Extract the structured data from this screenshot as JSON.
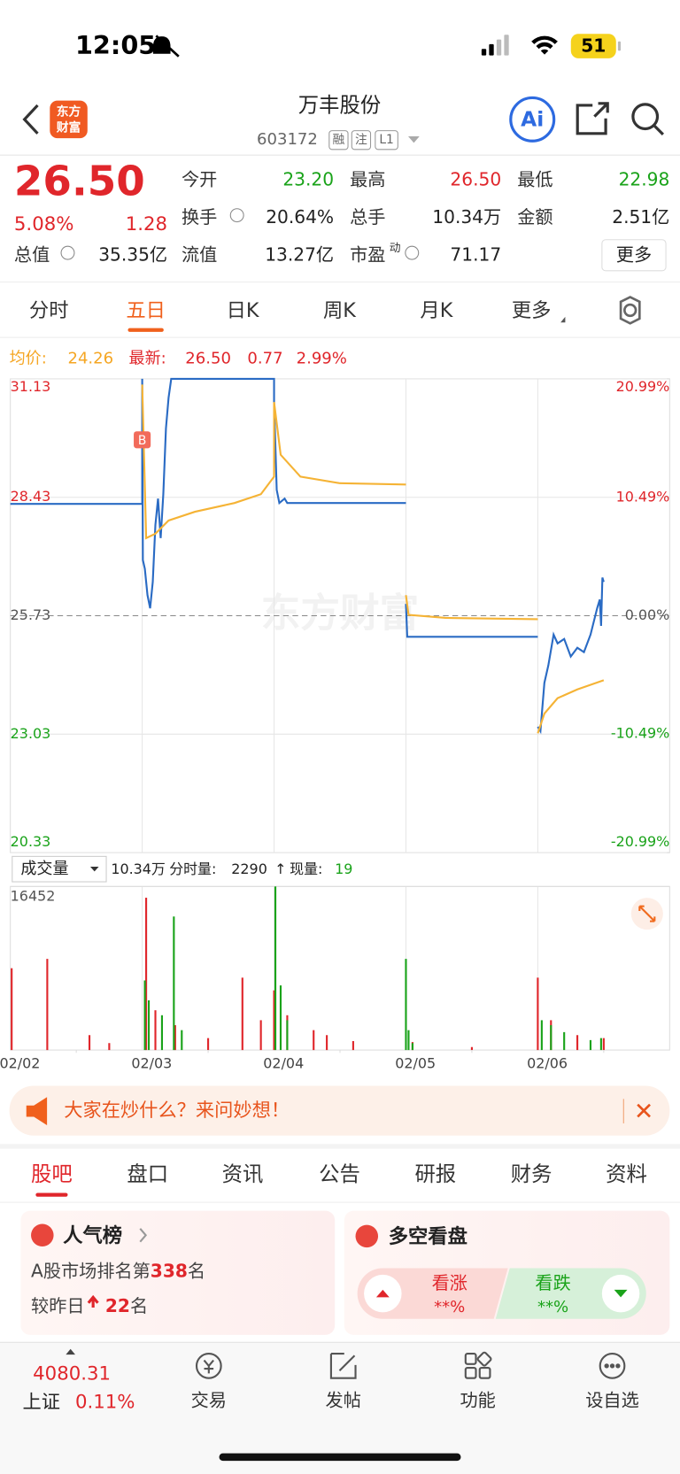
{
  "status": {
    "time": "12:05",
    "battery": "51"
  },
  "header": {
    "logo": [
      "东方",
      "财富"
    ],
    "title": "万丰股份",
    "code": "603172",
    "tags": [
      "融",
      "注",
      "L1"
    ],
    "ai": "Ai"
  },
  "quote": {
    "price": "26.50",
    "change_pct": "5.08%",
    "change": "1.28",
    "fields": [
      {
        "label": "今开",
        "value": "23.20",
        "color": "#1aa31a"
      },
      {
        "label": "最高",
        "value": "26.50",
        "color": "#e0262b"
      },
      {
        "label": "最低",
        "value": "22.98",
        "color": "#1aa31a"
      },
      {
        "label": "换手",
        "value": "20.64%",
        "color": "#222222"
      },
      {
        "label": "总手",
        "value": "10.34万",
        "color": "#222222"
      },
      {
        "label": "金额",
        "value": "2.51亿",
        "color": "#222222"
      },
      {
        "label": "总值",
        "value": "35.35亿",
        "color": "#222222"
      },
      {
        "label": "流值",
        "value": "13.27亿",
        "color": "#222222"
      },
      {
        "label": "市盈",
        "value": "71.17",
        "color": "#222222"
      }
    ],
    "pe_sup": "动",
    "more": "更多"
  },
  "tabs": {
    "items": [
      "分时",
      "五日",
      "日K",
      "周K",
      "月K",
      "更多"
    ],
    "active": 1
  },
  "legend": {
    "avg_label": "均价:",
    "avg": "24.26",
    "last_label": "最新:",
    "last": "26.50",
    "change": "0.77",
    "change_pct": "2.99%"
  },
  "chart_data": [
    {
      "type": "line",
      "xlim": [
        0,
        5
      ],
      "ylim": [
        20.33,
        31.13
      ],
      "yticks": [
        20.33,
        23.03,
        25.73,
        28.43,
        31.13
      ],
      "y2lim": [
        -20.99,
        20.99
      ],
      "y2ticks": [
        {
          "value": -20.99,
          "label": "-20.99%"
        },
        {
          "value": -10.49,
          "label": "-10.49%"
        },
        {
          "value": 0,
          "label": "0.00%"
        },
        {
          "value": 10.49,
          "label": "10.49%"
        },
        {
          "value": 20.99,
          "label": "20.99%"
        }
      ],
      "grid": true,
      "watermark": "东方财富",
      "series": [
        {
          "color": "#2a6bc4",
          "x": [
            0,
            1,
            1,
            1.005,
            1.02,
            1.04,
            1.06,
            1.08,
            1.1,
            1.12,
            1.14,
            1.16,
            1.18,
            1.2,
            1.22,
            2,
            2,
            2.02,
            2.04,
            2.08,
            2.1,
            3,
            null,
            3,
            3.01,
            4,
            null,
            4,
            4.02,
            4.05,
            4.08,
            4.12,
            4.15,
            4.2,
            4.25,
            4.3,
            4.35,
            4.4,
            4.45,
            4.47,
            4.48,
            4.49,
            4.5
          ],
          "values": [
            28.28,
            28.28,
            31.13,
            27.0,
            26.8,
            26.2,
            25.9,
            26.5,
            27.8,
            28.4,
            27.5,
            28.5,
            30.0,
            30.7,
            31.13,
            31.13,
            30.6,
            28.6,
            28.3,
            28.4,
            28.3,
            28.3,
            null,
            26.0,
            25.25,
            25.25,
            null,
            23.2,
            23.1,
            24.2,
            24.6,
            25.3,
            25.1,
            25.2,
            24.8,
            25.0,
            24.9,
            25.3,
            25.9,
            26.1,
            25.5,
            26.6,
            26.5
          ]
        },
        {
          "color": "#f5b335",
          "x": [
            1,
            1.03,
            1.1,
            1.2,
            1.4,
            1.7,
            1.9,
            2,
            2,
            2.05,
            2.2,
            2.5,
            3,
            null,
            3,
            3.02,
            3.3,
            4,
            null,
            4,
            4.05,
            4.15,
            4.3,
            4.5
          ],
          "values": [
            31.0,
            27.5,
            27.6,
            27.9,
            28.1,
            28.3,
            28.5,
            28.9,
            30.6,
            29.4,
            28.9,
            28.75,
            28.72,
            null,
            26.2,
            25.75,
            25.68,
            25.65,
            null,
            23.05,
            23.5,
            23.85,
            24.05,
            24.26
          ]
        }
      ],
      "annotations": [
        {
          "text": "B",
          "x": 1,
          "y": 29.74,
          "color": "#f26b5b"
        }
      ]
    },
    {
      "type": "bar",
      "xlim": [
        0,
        5
      ],
      "ylim": [
        0,
        16452
      ],
      "yticks": [
        16452
      ],
      "xticks": [
        {
          "value": 0.5,
          "label": "02/02"
        },
        {
          "value": 1.5,
          "label": "02/03"
        },
        {
          "value": 2.5,
          "label": "02/04"
        },
        {
          "value": 3.5,
          "label": "02/05"
        },
        {
          "value": 4.5,
          "label": "02/06"
        }
      ],
      "series": [
        {
          "color": "#e0262b",
          "x": [
            0.01,
            0.28,
            0.6,
            0.75,
            1.03,
            1.1,
            1.25,
            1.5,
            1.76,
            1.9,
            2.0,
            2.1,
            2.3,
            2.4,
            2.6,
            3.05,
            3.5,
            4.0,
            4.1,
            4.3,
            4.5
          ],
          "values": [
            8230,
            9170,
            1500,
            700,
            15320,
            4000,
            2500,
            1200,
            7280,
            3000,
            6000,
            3500,
            2000,
            1500,
            900,
            800,
            300,
            7280,
            3000,
            1500,
            1200
          ]
        },
        {
          "color": "#1aa31a",
          "x": [
            1.02,
            1.05,
            1.15,
            1.24,
            1.3,
            2.01,
            2.05,
            2.1,
            3.0,
            3.02,
            3.05,
            4.03,
            4.1,
            4.2,
            4.4,
            4.48
          ],
          "values": [
            7000,
            5000,
            3500,
            13430,
            2000,
            16452,
            6500,
            3000,
            9170,
            2000,
            700,
            3000,
            2500,
            1800,
            1000,
            1200
          ]
        }
      ]
    }
  ],
  "volume_info": {
    "selector": "成交量",
    "total": "10.34万",
    "tick_label": "分时量:",
    "tick": "2290",
    "arrow": "↑",
    "cur_label": "现量:",
    "cur": "19"
  },
  "banner": "大家在炒什么？来问妙想！",
  "subtabs": {
    "items": [
      "股吧",
      "盘口",
      "资讯",
      "公告",
      "研报",
      "财务",
      "资料"
    ],
    "active": 0
  },
  "cards": {
    "rank_title": "人气榜",
    "rank_prefix": "A股市场排名第",
    "rank": "338",
    "rank_suffix": "名",
    "change_prefix": "较昨日",
    "change": "22",
    "change_suffix": "名",
    "vote_title": "多空看盘",
    "bull": "看涨",
    "bull_pct": "**%",
    "bear": "看跌",
    "bear_pct": "**%"
  },
  "nav": {
    "index_value": "4080.31",
    "index_name": "上证",
    "index_pct": "0.11%",
    "items": [
      "交易",
      "发帖",
      "功能",
      "设自选"
    ]
  }
}
